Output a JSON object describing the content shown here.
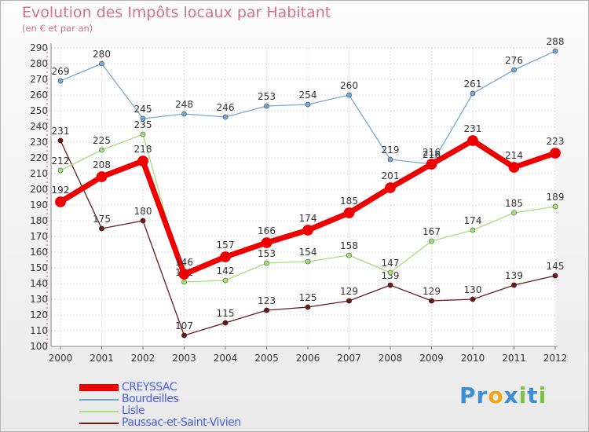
{
  "title": "Evolution des Impôts locaux par Habitant",
  "subtitle": "(en € et par an)",
  "brand": {
    "letters": [
      {
        "ch": "P",
        "color": "#3a8fd6"
      },
      {
        "ch": "r",
        "color": "#3a8fd6"
      },
      {
        "ch": "o",
        "color": "#f2a516"
      },
      {
        "ch": "x",
        "color": "#3a8fd6"
      },
      {
        "ch": "i",
        "color": "#7cc243"
      },
      {
        "ch": "t",
        "color": "#3a8fd6"
      },
      {
        "ch": "i",
        "color": "#7cc243"
      }
    ]
  },
  "chart_data": {
    "type": "line",
    "title": "Evolution des Impôts locaux par Habitant",
    "subtitle": "(en € et par an)",
    "xlabel": "",
    "ylabel": "",
    "x": [
      "2000",
      "2001",
      "2002",
      "2003",
      "2004",
      "2005",
      "2006",
      "2007",
      "2008",
      "2009",
      "2010",
      "2011",
      "2012"
    ],
    "ylim": [
      100,
      290
    ],
    "yticks": [
      100,
      110,
      120,
      130,
      140,
      150,
      160,
      170,
      180,
      190,
      200,
      210,
      220,
      230,
      240,
      250,
      260,
      270,
      280,
      290
    ],
    "grid": true,
    "legend_position": "bottom-left",
    "series": [
      {
        "name": "Paussac-et-Saint-Vivien",
        "color": "#6b1a1a",
        "values": [
          231,
          175,
          180,
          107,
          115,
          123,
          125,
          129,
          139,
          129,
          130,
          139,
          145
        ]
      },
      {
        "name": "Lisle",
        "color": "#a8de7e",
        "values": [
          212,
          225,
          235,
          141,
          142,
          153,
          154,
          158,
          147,
          167,
          174,
          185,
          189
        ]
      },
      {
        "name": "Bourdeilles",
        "color": "#78a9d4",
        "values": [
          269,
          280,
          245,
          248,
          246,
          253,
          254,
          260,
          219,
          216,
          261,
          276,
          288
        ]
      },
      {
        "name": "CREYSSAC",
        "color": "#ee0000",
        "values": [
          192,
          208,
          218,
          146,
          157,
          166,
          174,
          185,
          201,
          216,
          231,
          214,
          223
        ]
      }
    ],
    "legend_order": [
      "CREYSSAC",
      "Bourdeilles",
      "Lisle",
      "Paussac-et-Saint-Vivien"
    ]
  }
}
